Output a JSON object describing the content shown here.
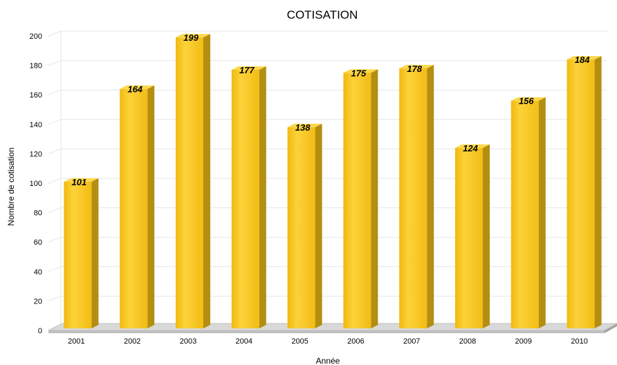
{
  "chart_data": {
    "type": "bar",
    "title": "COTISATION",
    "xlabel": "Année",
    "ylabel": "Nombre de cotisation",
    "categories": [
      "2001",
      "2002",
      "2003",
      "2004",
      "2005",
      "2006",
      "2007",
      "2008",
      "2009",
      "2010"
    ],
    "values": [
      101,
      164,
      199,
      177,
      138,
      175,
      178,
      124,
      156,
      184
    ],
    "ylim": [
      0,
      200
    ],
    "yticks": [
      "0",
      "20",
      "40",
      "60",
      "80",
      "100",
      "120",
      "140",
      "160",
      "180",
      "200"
    ],
    "grid": true,
    "legend": "none",
    "colors": {
      "bar_front": "#F5C41C",
      "bar_side": "#B38E10",
      "bar_top": "#FBD84A",
      "floor": "#BFBFBF"
    }
  }
}
